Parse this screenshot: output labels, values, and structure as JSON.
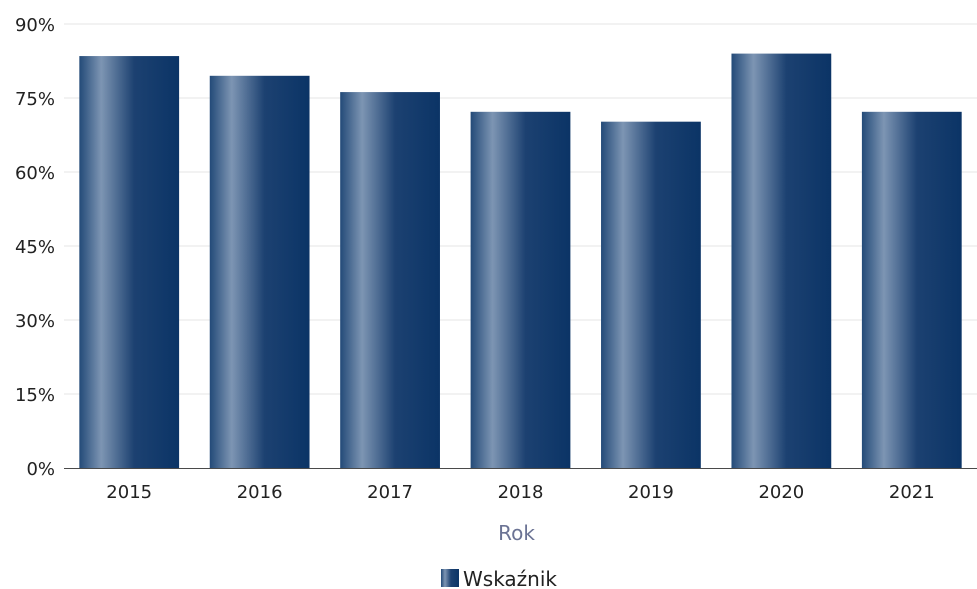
{
  "chart_data": {
    "type": "bar",
    "title": "",
    "xlabel": "Rok",
    "ylabel": "",
    "categories": [
      "2015",
      "2016",
      "2017",
      "2018",
      "2019",
      "2020",
      "2021"
    ],
    "series": [
      {
        "name": "Wskaźnik",
        "values": [
          83.5,
          79.5,
          76.2,
          72.2,
          70.2,
          84.0,
          72.2
        ]
      }
    ],
    "ylim": [
      0,
      90
    ],
    "yticks": [
      0,
      15,
      30,
      45,
      60,
      75,
      90
    ],
    "ytick_labels": [
      "0%",
      "15%",
      "30%",
      "45%",
      "60%",
      "75%",
      "90%"
    ],
    "grid": true,
    "legend_position": "bottom-center",
    "colors": {
      "bar_dark": "#0b3466",
      "bar_light": "#7d95b3",
      "grid": "#e6e6e6",
      "axis": "#4a4a4a",
      "axis_title": "#6b7394"
    }
  }
}
